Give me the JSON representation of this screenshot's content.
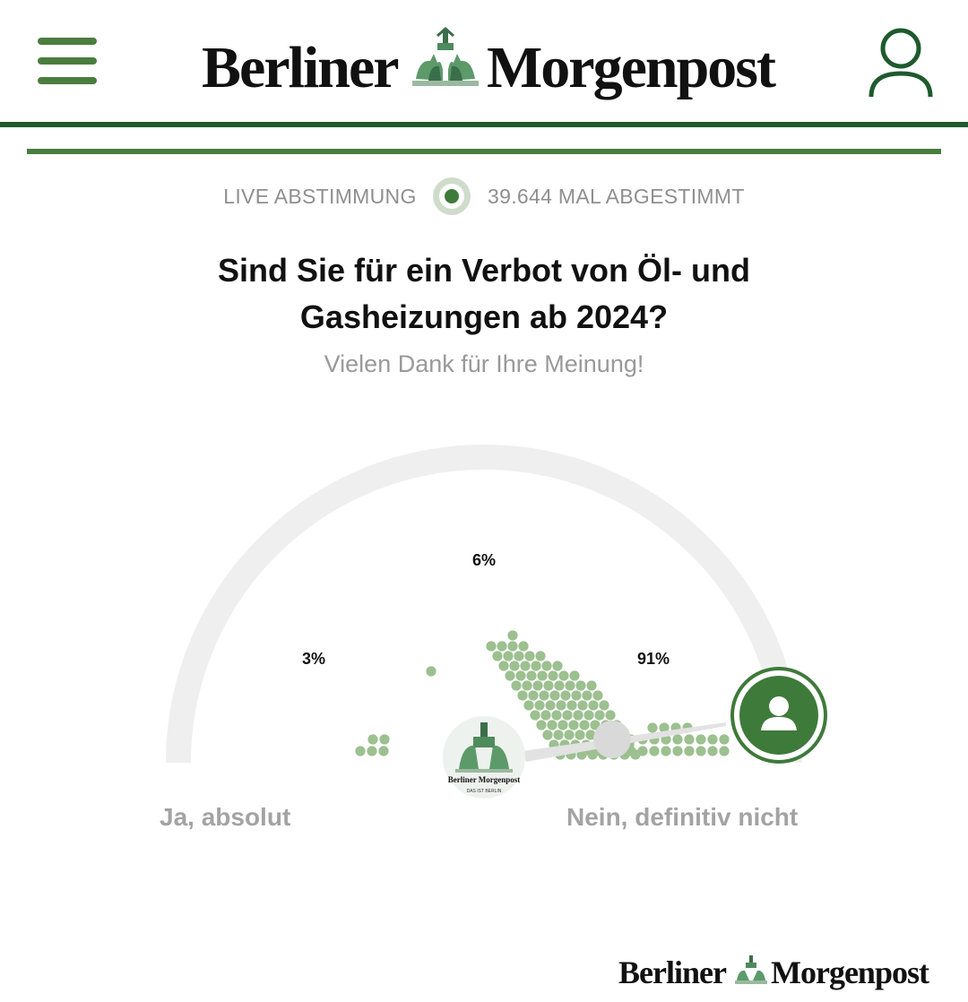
{
  "header": {
    "brand_left": "Berliner",
    "brand_right": "Morgenpost",
    "menu_icon": "hamburger-menu-icon",
    "account_icon": "user-account-icon",
    "brand_color": "#1e5a2e",
    "accent_color": "#4a7d3f"
  },
  "poll": {
    "live_label": "LIVE ABSTIMMUNG",
    "vote_count": "39.644 MAL ABGESTIMMT",
    "question": "Sind Sie für ein Verbot von Öl- und Gasheizungen ab 2024?",
    "thanks": "Vielen Dank für Ihre Meinung!",
    "label_left": "Ja, absolut",
    "label_right": "Nein, definitiv nicht",
    "results": [
      {
        "position": "left",
        "percent_label": "3%",
        "percent": 3
      },
      {
        "position": "middle",
        "percent_label": "6%",
        "percent": 6
      },
      {
        "position": "right",
        "percent_label": "91%",
        "percent": 91
      }
    ],
    "needle_logo_text": "Berliner Morgenpost",
    "needle_logo_tagline": "DAS IST BERLIN",
    "user_marker_icon": "user-silhouette-icon"
  },
  "footer": {
    "brand_left": "Berliner",
    "brand_right": "Morgenpost"
  }
}
